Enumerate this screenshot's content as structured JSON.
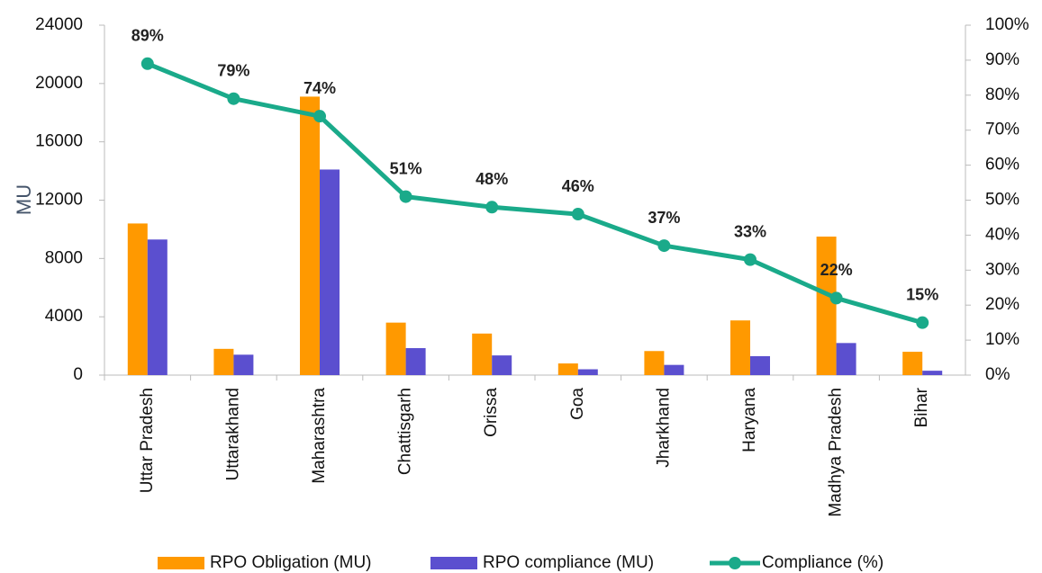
{
  "chart_data": {
    "type": "bar_line",
    "y_label": "MU",
    "categories": [
      "Uttar Pradesh",
      "Uttarakhand",
      "Maharashtra",
      "Chattisgarh",
      "Orissa",
      "Goa",
      "Jharkhand",
      "Haryana",
      "Madhya Pradesh",
      "Bihar"
    ],
    "series": [
      {
        "name": "RPO Obligation (MU)",
        "color": "#ff9900",
        "type": "bar",
        "values": [
          10400,
          1800,
          19100,
          3600,
          2850,
          800,
          1650,
          3750,
          9500,
          1600
        ]
      },
      {
        "name": "RPO compliance (MU)",
        "color": "#5b4fcf",
        "type": "bar",
        "values": [
          9300,
          1400,
          14100,
          1850,
          1350,
          400,
          700,
          1300,
          2200,
          300
        ]
      },
      {
        "name": "Compliance (%)",
        "color": "#1aaa8a",
        "type": "line",
        "axis": "y2",
        "values": [
          89,
          79,
          74,
          51,
          48,
          46,
          37,
          33,
          22,
          15
        ],
        "value_labels": [
          "89%",
          "79%",
          "74%",
          "51%",
          "48%",
          "46%",
          "37%",
          "33%",
          "22%",
          "15%"
        ]
      }
    ],
    "ylim": [
      0,
      24000
    ],
    "yticks": [
      0,
      4000,
      8000,
      12000,
      16000,
      20000,
      24000
    ],
    "y2lim": [
      0,
      100
    ],
    "y2ticks": [
      {
        "value": 0,
        "label": "0%"
      },
      {
        "value": 10,
        "label": "10%"
      },
      {
        "value": 20,
        "label": "20%"
      },
      {
        "value": 30,
        "label": "30%"
      },
      {
        "value": 40,
        "label": "40%"
      },
      {
        "value": 50,
        "label": "50%"
      },
      {
        "value": 60,
        "label": "60%"
      },
      {
        "value": 70,
        "label": "70%"
      },
      {
        "value": 80,
        "label": "80%"
      },
      {
        "value": 90,
        "label": "90%"
      },
      {
        "value": 100,
        "label": "100%"
      }
    ],
    "grid": false,
    "legend": "bottom"
  }
}
